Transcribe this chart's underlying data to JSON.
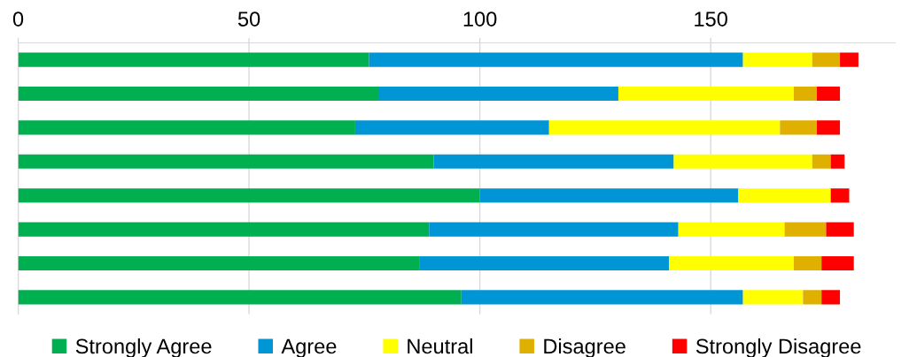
{
  "chart_data": {
    "type": "bar",
    "orientation": "horizontal",
    "stacked": true,
    "categories": [
      null,
      null,
      null,
      null,
      null,
      null,
      null,
      null
    ],
    "series": [
      {
        "name": "Strongly Agree",
        "color": "#00b050",
        "values": [
          76,
          78,
          73,
          90,
          100,
          89,
          87,
          96
        ]
      },
      {
        "name": "Agree",
        "color": "#0096d6",
        "values": [
          81,
          52,
          42,
          52,
          56,
          54,
          54,
          61
        ]
      },
      {
        "name": "Neutral",
        "color": "#ffff00",
        "values": [
          15,
          38,
          50,
          30,
          20,
          23,
          27,
          13
        ]
      },
      {
        "name": "Disagree",
        "color": "#e0b000",
        "values": [
          6,
          5,
          8,
          4,
          0,
          9,
          6,
          4
        ]
      },
      {
        "name": "Strongly Disagree",
        "color": "#ff0000",
        "values": [
          4,
          5,
          5,
          3,
          4,
          6,
          7,
          4
        ]
      }
    ],
    "xlim": [
      0,
      190
    ],
    "xticks": [
      0,
      50,
      100,
      150
    ],
    "grid": "x",
    "legend": "bottom"
  }
}
